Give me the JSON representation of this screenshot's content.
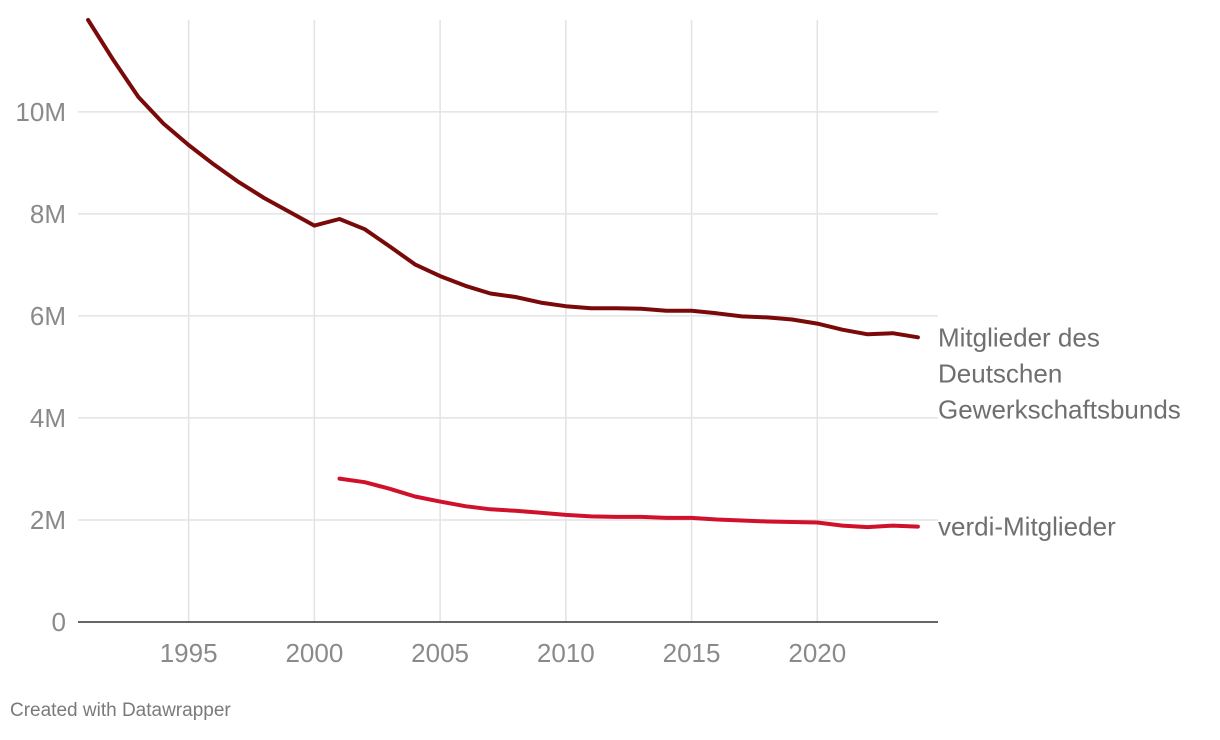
{
  "chart_data": {
    "type": "line",
    "x_range": [
      1990.6,
      2024.8
    ],
    "y_range": [
      0,
      11800000
    ],
    "y_ticks": [
      {
        "value": 0,
        "label": "0"
      },
      {
        "value": 2000000,
        "label": "2M"
      },
      {
        "value": 4000000,
        "label": "4M"
      },
      {
        "value": 6000000,
        "label": "6M"
      },
      {
        "value": 8000000,
        "label": "8M"
      },
      {
        "value": 10000000,
        "label": "10M"
      }
    ],
    "x_ticks": [
      {
        "value": 1995,
        "label": "1995"
      },
      {
        "value": 2000,
        "label": "2000"
      },
      {
        "value": 2005,
        "label": "2005"
      },
      {
        "value": 2010,
        "label": "2010"
      },
      {
        "value": 2015,
        "label": "2015"
      },
      {
        "value": 2020,
        "label": "2020"
      }
    ],
    "grid": true,
    "series": [
      {
        "name": "Mitglieder des Deutschen Gewerkschaftsbunds",
        "label_lines": [
          "Mitglieder des",
          "Deutschen",
          "Gewerkschaftsbunds"
        ],
        "color": "#7a0a0a",
        "x": [
          1991,
          1992,
          1993,
          1994,
          1995,
          1996,
          1997,
          1998,
          1999,
          2000,
          2001,
          2002,
          2003,
          2004,
          2005,
          2006,
          2007,
          2008,
          2009,
          2010,
          2011,
          2012,
          2013,
          2014,
          2015,
          2016,
          2017,
          2018,
          2019,
          2020,
          2021,
          2022,
          2023,
          2024
        ],
        "y": [
          11800000,
          11020000,
          10290000,
          9770000,
          9350000,
          8970000,
          8620000,
          8310000,
          8040000,
          7770000,
          7900000,
          7700000,
          7360000,
          7010000,
          6780000,
          6590000,
          6440000,
          6370000,
          6260000,
          6190000,
          6150000,
          6150000,
          6140000,
          6100000,
          6100000,
          6050000,
          5990000,
          5970000,
          5930000,
          5850000,
          5730000,
          5640000,
          5660000,
          5580000
        ]
      },
      {
        "name": "verdi-Mitglieder",
        "label_lines": [
          "verdi-Mitglieder"
        ],
        "color": "#d0112b",
        "x": [
          2001,
          2002,
          2003,
          2004,
          2005,
          2006,
          2007,
          2008,
          2009,
          2010,
          2011,
          2012,
          2013,
          2014,
          2015,
          2016,
          2017,
          2018,
          2019,
          2020,
          2021,
          2022,
          2023,
          2024
        ],
        "y": [
          2810000,
          2740000,
          2610000,
          2460000,
          2360000,
          2270000,
          2210000,
          2180000,
          2140000,
          2100000,
          2070000,
          2060000,
          2060000,
          2040000,
          2040000,
          2010000,
          1990000,
          1970000,
          1960000,
          1950000,
          1890000,
          1860000,
          1890000,
          1870000
        ]
      }
    ]
  },
  "footer": {
    "credit": "Created with Datawrapper"
  }
}
